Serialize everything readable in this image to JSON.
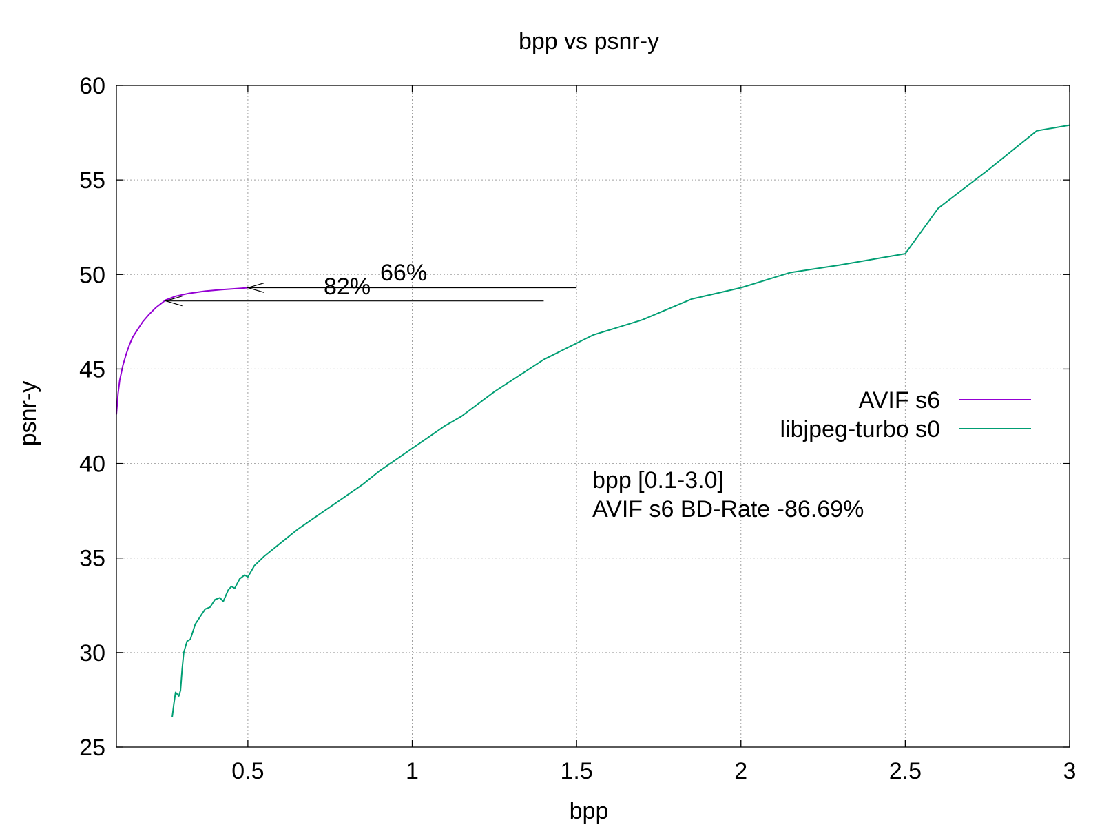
{
  "chart_data": {
    "type": "line",
    "title": "bpp vs psnr-y",
    "xlabel": "bpp",
    "ylabel": "psnr-y",
    "xlim": [
      0.1,
      3.0
    ],
    "ylim": [
      25,
      60
    ],
    "xticks": [
      {
        "value": 0.5,
        "label": "0.5"
      },
      {
        "value": 1,
        "label": "1"
      },
      {
        "value": 1.5,
        "label": "1.5"
      },
      {
        "value": 2,
        "label": "2"
      },
      {
        "value": 2.5,
        "label": "2.5"
      },
      {
        "value": 3,
        "label": "3"
      }
    ],
    "yticks": [
      {
        "value": 25,
        "label": "25"
      },
      {
        "value": 30,
        "label": "30"
      },
      {
        "value": 35,
        "label": "35"
      },
      {
        "value": 40,
        "label": "40"
      },
      {
        "value": 45,
        "label": "45"
      },
      {
        "value": 50,
        "label": "50"
      },
      {
        "value": 55,
        "label": "55"
      },
      {
        "value": 60,
        "label": "60"
      }
    ],
    "grid": true,
    "legend_position": "right",
    "series": [
      {
        "name": "AVIF s6",
        "color": "#9400d3",
        "points": [
          [
            0.1,
            42.6
          ],
          [
            0.105,
            43.7
          ],
          [
            0.11,
            44.4
          ],
          [
            0.12,
            45.2
          ],
          [
            0.13,
            45.8
          ],
          [
            0.14,
            46.3
          ],
          [
            0.15,
            46.7
          ],
          [
            0.165,
            47.1
          ],
          [
            0.18,
            47.5
          ],
          [
            0.2,
            47.9
          ],
          [
            0.22,
            48.25
          ],
          [
            0.25,
            48.65
          ],
          [
            0.28,
            48.85
          ],
          [
            0.32,
            49.0
          ],
          [
            0.37,
            49.12
          ],
          [
            0.42,
            49.2
          ],
          [
            0.47,
            49.26
          ],
          [
            0.5,
            49.3
          ]
        ]
      },
      {
        "name": "libjpeg-turbo s0",
        "color": "#009e73",
        "points": [
          [
            0.27,
            26.6
          ],
          [
            0.275,
            27.3
          ],
          [
            0.28,
            27.9
          ],
          [
            0.29,
            27.7
          ],
          [
            0.295,
            28.0
          ],
          [
            0.3,
            29.1
          ],
          [
            0.305,
            30.0
          ],
          [
            0.315,
            30.6
          ],
          [
            0.325,
            30.7
          ],
          [
            0.34,
            31.5
          ],
          [
            0.355,
            31.9
          ],
          [
            0.37,
            32.3
          ],
          [
            0.385,
            32.4
          ],
          [
            0.4,
            32.8
          ],
          [
            0.415,
            32.9
          ],
          [
            0.425,
            32.7
          ],
          [
            0.44,
            33.3
          ],
          [
            0.45,
            33.5
          ],
          [
            0.46,
            33.4
          ],
          [
            0.475,
            33.9
          ],
          [
            0.49,
            34.1
          ],
          [
            0.5,
            34.0
          ],
          [
            0.52,
            34.6
          ],
          [
            0.55,
            35.1
          ],
          [
            0.6,
            35.8
          ],
          [
            0.65,
            36.5
          ],
          [
            0.7,
            37.1
          ],
          [
            0.75,
            37.7
          ],
          [
            0.8,
            38.3
          ],
          [
            0.85,
            38.9
          ],
          [
            0.9,
            39.6
          ],
          [
            0.95,
            40.2
          ],
          [
            1.0,
            40.8
          ],
          [
            1.05,
            41.4
          ],
          [
            1.1,
            42.0
          ],
          [
            1.15,
            42.5
          ],
          [
            1.25,
            43.8
          ],
          [
            1.4,
            45.5
          ],
          [
            1.55,
            46.8
          ],
          [
            1.7,
            47.6
          ],
          [
            1.85,
            48.7
          ],
          [
            2.0,
            49.3
          ],
          [
            2.15,
            50.1
          ],
          [
            2.3,
            50.5
          ],
          [
            2.5,
            51.1
          ],
          [
            2.6,
            53.5
          ],
          [
            2.75,
            55.5
          ],
          [
            2.9,
            57.6
          ],
          [
            3.0,
            57.9
          ]
        ]
      }
    ],
    "annotations": [
      {
        "text": "66%",
        "x": 0.9,
        "y": 49.8
      },
      {
        "text": "82%",
        "x": 0.73,
        "y": 49.05
      }
    ],
    "arrows": [
      {
        "from": [
          1.5,
          49.3
        ],
        "to": [
          0.5,
          49.3
        ]
      },
      {
        "from": [
          1.4,
          48.6
        ],
        "to": [
          0.25,
          48.6
        ]
      }
    ],
    "info_color": "#00ff00",
    "info_lines": [
      "bpp [0.1-3.0]",
      "AVIF s6 BD-Rate -86.69%"
    ]
  }
}
